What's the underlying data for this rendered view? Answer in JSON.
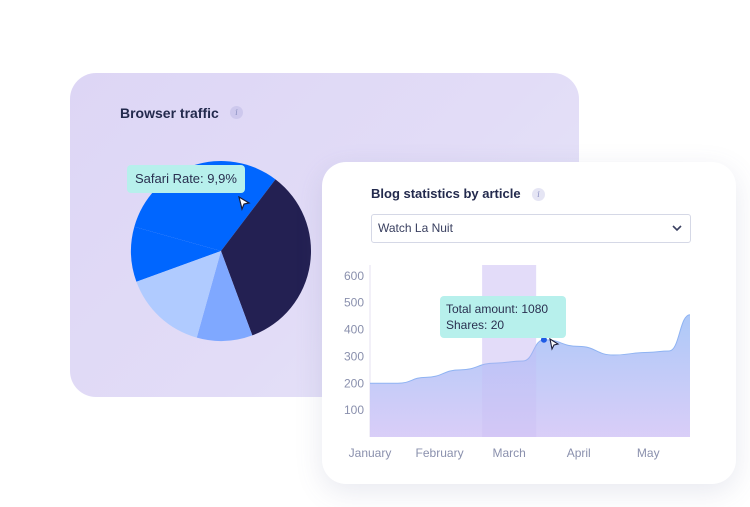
{
  "browser_card": {
    "title": "Browser traffic",
    "info_icon": "info-icon"
  },
  "blog_card": {
    "title_prefix": "Blog statistics by",
    "title_emphasis": "article",
    "info_icon": "info-icon",
    "select_value": "Watch La Nuit",
    "select_icon": "chevron-down-icon"
  },
  "pie_tooltip": {
    "text": "Safari Rate: 9,9%"
  },
  "area_tooltip": {
    "line1": "Total amount: 1080",
    "line2": "Shares: 20"
  },
  "colors": {
    "pie_blue": "#0066ff",
    "pie_navy": "#232052",
    "pie_mid": "#7fa8ff",
    "pie_light": "#b0cbff",
    "area_top": "#a9c6f8",
    "area_bottom": "#d7cbf7",
    "tooltip_bg": "#b7f0ec",
    "highlight": "#ede8fb"
  },
  "chart_data": [
    {
      "type": "pie",
      "title": "Browser traffic",
      "slices": [
        {
          "name": "",
          "value": 9.9,
          "color": "#0066ff"
        },
        {
          "name": "",
          "value": 31.0,
          "color": "#0066ff"
        },
        {
          "name": "",
          "value": 34.0,
          "color": "#232052"
        },
        {
          "name": "",
          "value": 10.0,
          "color": "#7fa8ff"
        },
        {
          "name": "",
          "value": 15.1,
          "color": "#b0cbff"
        }
      ],
      "highlighted": "Safari Rate: 9,9%"
    },
    {
      "type": "area",
      "title": "Blog statistics by article",
      "categories": [
        "January",
        "February",
        "March",
        "April",
        "May"
      ],
      "x": [
        0,
        0.4,
        0.8,
        1.3,
        1.8,
        2.2,
        2.5,
        3.0,
        3.5,
        4.0,
        4.3,
        4.6
      ],
      "y": [
        200,
        200,
        222,
        250,
        275,
        283,
        362,
        337,
        305,
        315,
        320,
        455
      ],
      "ylim": [
        0,
        640
      ],
      "yticks": [
        100,
        200,
        300,
        400,
        500,
        600
      ],
      "highlight_category": "March",
      "highlight_point": {
        "x": 2.5,
        "y": 362
      }
    }
  ]
}
